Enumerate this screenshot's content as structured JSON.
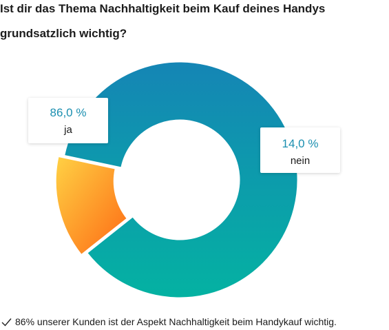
{
  "title": "Ist dir das Thema Nachhaltigkeit beim Kauf deines Handys grundsatzlich wichtig?",
  "footer": {
    "icon": "checkmark-icon",
    "text": "86% unserer Kunden ist der Aspekt Nachhaltigkeit beim Handykauf wichtig."
  },
  "chart_data": {
    "type": "pie",
    "variant": "donut",
    "title": "Ist dir das Thema Nachhaltigkeit beim Kauf deines Handys grundsatzlich wichtig?",
    "slices": [
      {
        "label": "ja",
        "value": 86.0,
        "display": "86,0 %",
        "color_start": "#1585b5",
        "color_end": "#04b2a2"
      },
      {
        "label": "nein",
        "value": 14.0,
        "display": "14,0 %",
        "color_start": "#ffd144",
        "color_end": "#fd6a14"
      }
    ]
  }
}
